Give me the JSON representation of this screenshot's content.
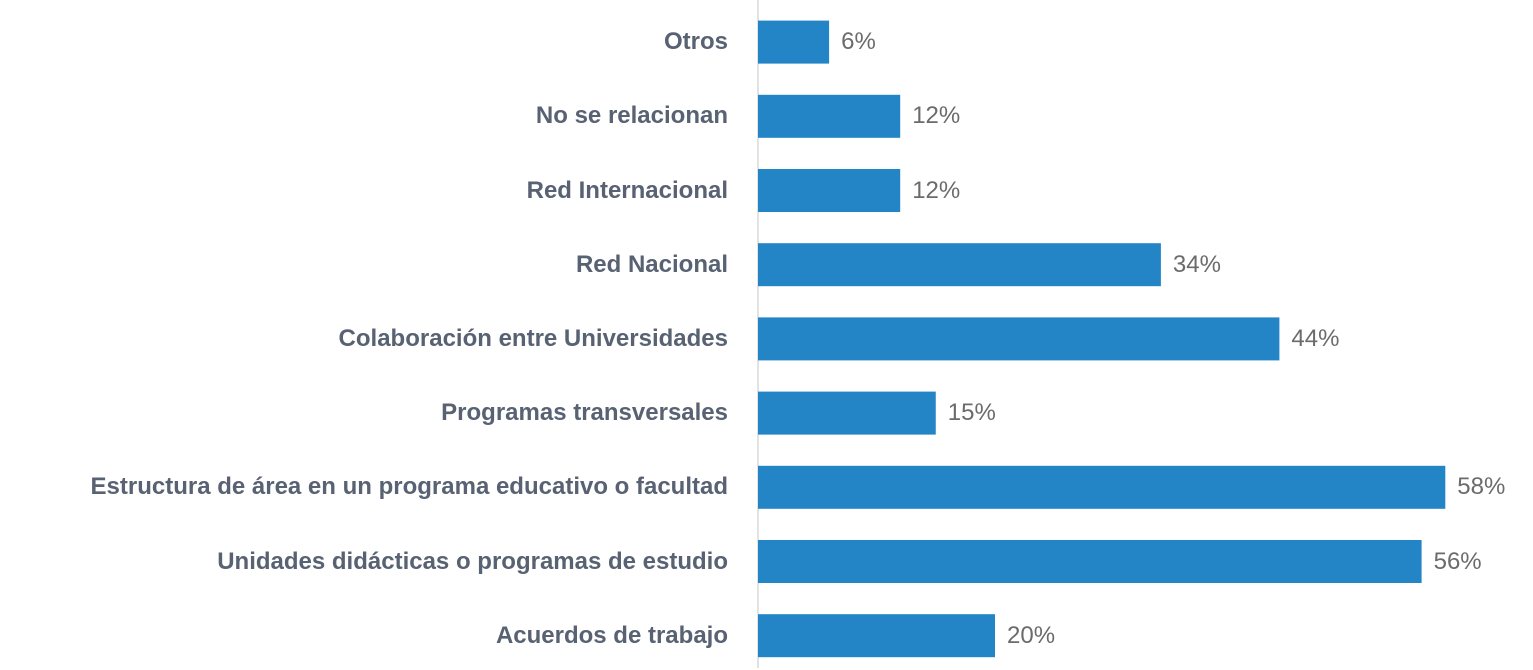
{
  "chart_data": {
    "type": "bar",
    "orientation": "horizontal",
    "color": "#2384c6",
    "categories": [
      "Otros",
      "No se relacionan",
      "Red Internacional",
      "Red Nacional",
      "Colaboración entre Universidades",
      "Programas transversales",
      "Estructura de área en un programa educativo o facultad",
      "Unidades didácticas o programas de estudio",
      "Acuerdos de trabajo"
    ],
    "values": [
      6,
      12,
      12,
      34,
      44,
      15,
      58,
      56,
      20
    ],
    "value_labels": [
      "6%",
      "12%",
      "12%",
      "34%",
      "44%",
      "15%",
      "58%",
      "56%",
      "20%"
    ]
  }
}
